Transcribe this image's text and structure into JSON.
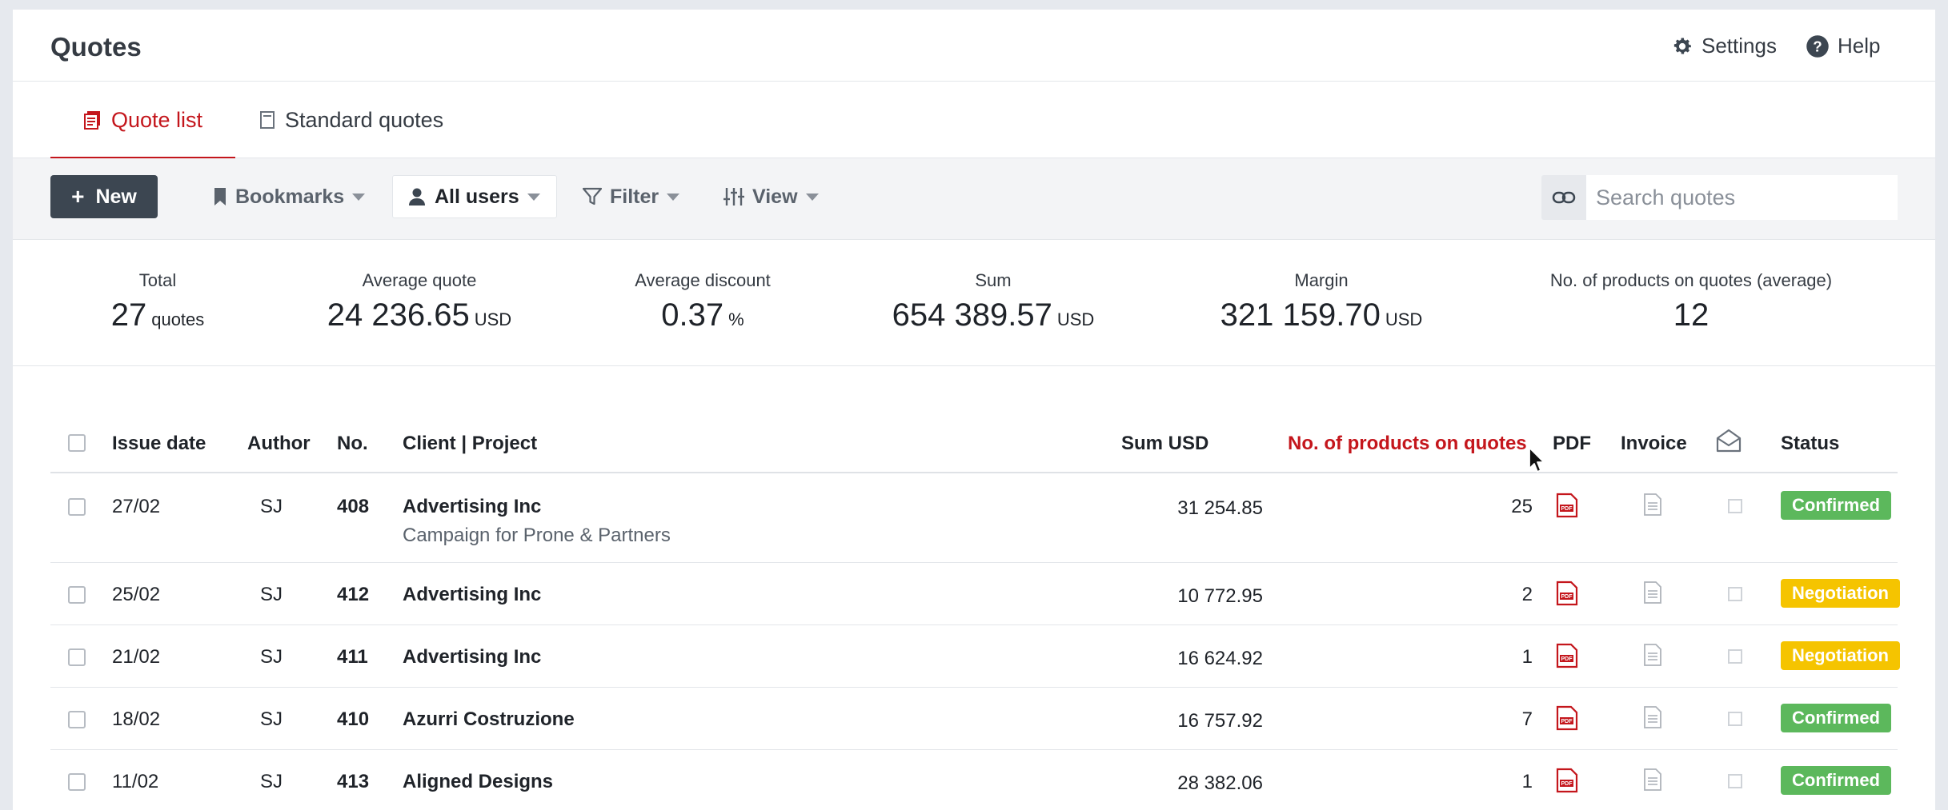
{
  "header": {
    "title": "Quotes",
    "settings_label": "Settings",
    "help_label": "Help"
  },
  "tabs": [
    {
      "label": "Quote list",
      "active": true
    },
    {
      "label": "Standard quotes",
      "active": false
    }
  ],
  "toolbar": {
    "new_label": "New",
    "bookmarks_label": "Bookmarks",
    "users_label": "All users",
    "filter_label": "Filter",
    "view_label": "View",
    "search_placeholder": "Search quotes"
  },
  "stats": [
    {
      "label": "Total",
      "value": "27",
      "unit": "quotes"
    },
    {
      "label": "Average quote",
      "value": "24 236.65",
      "unit": "USD"
    },
    {
      "label": "Average discount",
      "value": "0.37",
      "unit": "%"
    },
    {
      "label": "Sum",
      "value": "654 389.57",
      "unit": "USD"
    },
    {
      "label": "Margin",
      "value": "321 159.70",
      "unit": "USD"
    },
    {
      "label": "No. of products on quotes (average)",
      "value": "12",
      "unit": ""
    }
  ],
  "table": {
    "columns": {
      "issue_date": "Issue date",
      "author": "Author",
      "no": "No.",
      "client": "Client | Project",
      "sum": "Sum USD",
      "products": "No. of products on quotes",
      "pdf": "PDF",
      "invoice": "Invoice",
      "status": "Status"
    },
    "rows": [
      {
        "date": "27/02",
        "author": "SJ",
        "no": "408",
        "client": "Advertising Inc",
        "project": "Campaign for Prone & Partners",
        "sum": "31 254.85",
        "products": "25",
        "status": "Confirmed"
      },
      {
        "date": "25/02",
        "author": "SJ",
        "no": "412",
        "client": "Advertising Inc",
        "project": "",
        "sum": "10 772.95",
        "products": "2",
        "status": "Negotiation"
      },
      {
        "date": "21/02",
        "author": "SJ",
        "no": "411",
        "client": "Advertising Inc",
        "project": "",
        "sum": "16 624.92",
        "products": "1",
        "status": "Negotiation"
      },
      {
        "date": "18/02",
        "author": "SJ",
        "no": "410",
        "client": "Azurri Costruzione",
        "project": "",
        "sum": "16 757.92",
        "products": "7",
        "status": "Confirmed"
      },
      {
        "date": "11/02",
        "author": "SJ",
        "no": "413",
        "client": "Aligned Designs",
        "project": "",
        "sum": "28 382.06",
        "products": "1",
        "status": "Confirmed"
      }
    ]
  },
  "colors": {
    "accent": "#c4161c",
    "confirmed": "#5cb85c",
    "negotiation": "#f5c400",
    "dark_button": "#3c4651"
  }
}
